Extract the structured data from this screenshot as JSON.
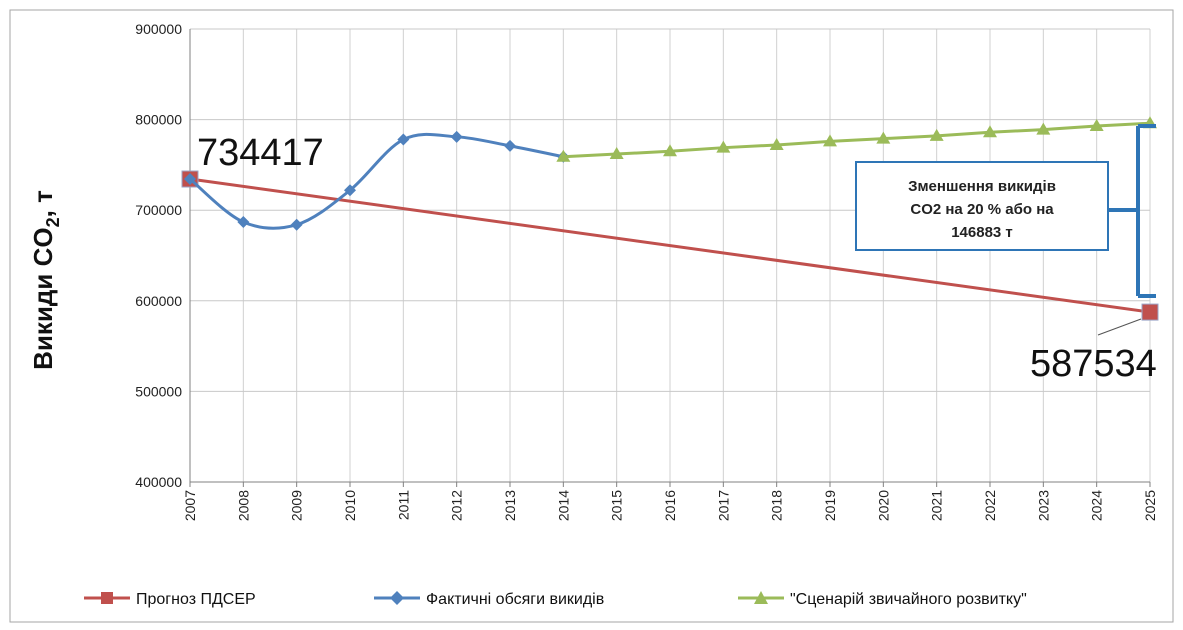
{
  "chart_data": {
    "type": "line",
    "ylabel": "Викиди CO",
    "ylabel_sub": "2",
    "ylabel_suffix": ", т",
    "ylim": [
      400000,
      900000
    ],
    "yticks": [
      "400000",
      "500000",
      "600000",
      "700000",
      "800000",
      "900000"
    ],
    "x": [
      "2007",
      "2008",
      "2009",
      "2010",
      "2011",
      "2012",
      "2013",
      "2014",
      "2015",
      "2016",
      "2017",
      "2018",
      "2019",
      "2020",
      "2021",
      "2022",
      "2023",
      "2024",
      "2025"
    ],
    "grid": true,
    "legend_position": "bottom",
    "series": [
      {
        "name": "Прогноз ПДСЕР",
        "color": "#c0504d",
        "marker": "square",
        "points": [
          [
            "2007",
            734417
          ],
          [
            "2025",
            587534
          ]
        ]
      },
      {
        "name": "Фактичні обсяги викидів",
        "color": "#4f81bd",
        "marker": "diamond",
        "smooth": true,
        "points": [
          [
            "2007",
            734417
          ],
          [
            "2008",
            687000
          ],
          [
            "2009",
            684000
          ],
          [
            "2010",
            722000
          ],
          [
            "2011",
            778000
          ],
          [
            "2012",
            781000
          ],
          [
            "2013",
            771000
          ],
          [
            "2014",
            759000
          ]
        ]
      },
      {
        "name": "\"Сценарій звичайного розвитку\"",
        "color": "#9bbb59",
        "marker": "triangle",
        "points": [
          [
            "2014",
            759000
          ],
          [
            "2015",
            762000
          ],
          [
            "2016",
            765000
          ],
          [
            "2017",
            769000
          ],
          [
            "2018",
            772000
          ],
          [
            "2019",
            776000
          ],
          [
            "2020",
            779000
          ],
          [
            "2021",
            782000
          ],
          [
            "2022",
            786000
          ],
          [
            "2023",
            789000
          ],
          [
            "2024",
            793000
          ],
          [
            "2025",
            796000
          ]
        ]
      }
    ],
    "labels": {
      "start_value": "734417",
      "end_value": "587534"
    },
    "annotation": {
      "lines": [
        "Зменшення викидів",
        "CO2 на 20 % або на",
        "146883 т"
      ],
      "color": "#2e75b6"
    }
  }
}
